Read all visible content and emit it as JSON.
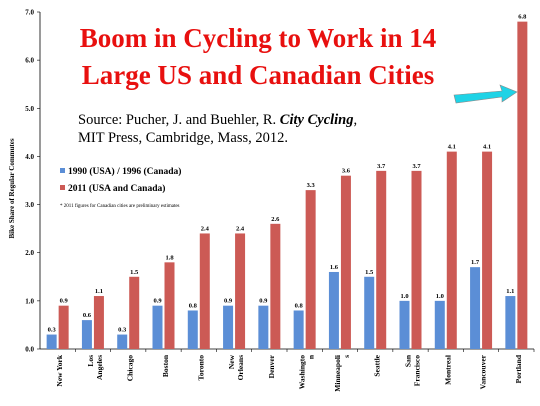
{
  "title": {
    "line1": "Boom in Cycling to Work in 14",
    "line2": "Large US and Canadian Cities"
  },
  "source": {
    "prefix": "Source:  Pucher, J. and  Buehler, R. ",
    "book": "City Cycling",
    "suffix": ",",
    "line2": "MIT Press, Cambridge, Mass, 2012."
  },
  "note": "* 2011 figures for Canadian cities are preliminary estimates",
  "colors": {
    "series_1990": "#5b8ed6",
    "series_2011": "#cc5a55",
    "title": "#e8100f",
    "arrow": "#1fd3e6"
  },
  "chart_data": {
    "type": "bar",
    "ylabel": "Bike Share of Regular Commutes",
    "ylim": [
      0,
      7
    ],
    "yticks": [
      "0.0",
      "1.0",
      "2.0",
      "3.0",
      "4.0",
      "5.0",
      "6.0",
      "7.0"
    ],
    "categories": [
      [
        "New York"
      ],
      [
        "Los",
        "Angeles"
      ],
      [
        "Chicago"
      ],
      [
        "Boston"
      ],
      [
        "Toronto"
      ],
      [
        "New",
        "Orleans"
      ],
      [
        "Denver"
      ],
      [
        "Washingto",
        "n"
      ],
      [
        "Minneapoli",
        "s"
      ],
      [
        "Seattle"
      ],
      [
        "San",
        "Francisco"
      ],
      [
        "Montreal"
      ],
      [
        "Vancouver"
      ],
      [
        "Portland"
      ]
    ],
    "series": [
      {
        "name": "1990 (USA) / 1996 (Canada)",
        "values": [
          0.3,
          0.6,
          0.3,
          0.9,
          0.8,
          0.9,
          0.9,
          0.8,
          1.6,
          1.5,
          1.0,
          1.0,
          1.7,
          1.1
        ]
      },
      {
        "name": "2011 (USA and Canada)",
        "values": [
          0.9,
          1.1,
          1.5,
          1.8,
          2.4,
          2.4,
          2.6,
          3.3,
          3.6,
          3.7,
          3.7,
          4.1,
          4.1,
          6.8
        ]
      }
    ],
    "legend": "left",
    "grid": false
  }
}
